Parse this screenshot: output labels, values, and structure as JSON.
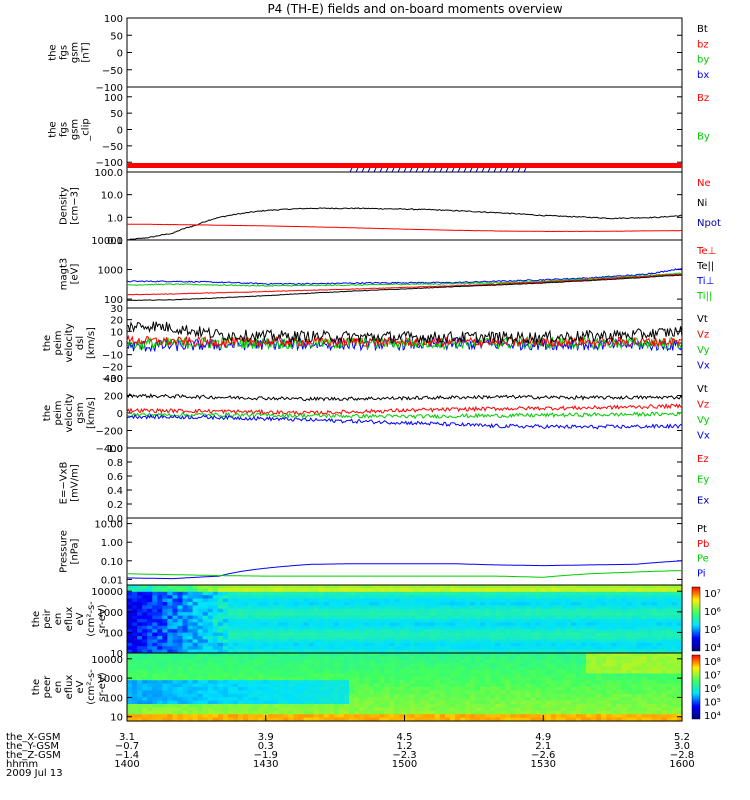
{
  "title": "P4 (TH-E) fields and on-board moments overview",
  "colors": {
    "black": "#000000",
    "red": "#ff0000",
    "green": "#00cc00",
    "blue": "#0000ff",
    "navy": "#0000aa"
  },
  "chart_data": {
    "type": "line",
    "title": "P4 (TH-E) fields and on-board moments overview",
    "date": "2009 Jul 13",
    "x_range": [
      "14:00",
      "16:00"
    ],
    "panels": [
      {
        "id": "fgs",
        "ylabel": [
          "the",
          "fgs",
          "gsm",
          "[nT]"
        ],
        "scale": "linear",
        "ylim": [
          -100,
          100
        ],
        "ticks": [
          100,
          50,
          0,
          -50,
          -100
        ],
        "tick_labels": [
          "100",
          "50",
          "0",
          "−50",
          "−100"
        ],
        "legend": [
          {
            "name": "Bt",
            "color": "#000000"
          },
          {
            "name": "bz",
            "color": "#ff0000"
          },
          {
            "name": "by",
            "color": "#00cc00"
          },
          {
            "name": "bx",
            "color": "#0000ff"
          }
        ],
        "series": []
      },
      {
        "id": "fgs_clip",
        "ylabel": [
          "the",
          "fgs",
          "gsm",
          "_clip"
        ],
        "scale": "linear",
        "ylim": [
          -130,
          130
        ],
        "ticks": [
          100,
          50,
          0,
          -50,
          -100
        ],
        "tick_labels": [
          "100",
          "50",
          "0",
          "−50",
          "−100"
        ],
        "legend": [
          {
            "name": "Bz",
            "color": "#ff0000"
          },
          {
            "name": "By",
            "color": "#00cc00"
          }
        ],
        "series": []
      },
      {
        "id": "density",
        "ylabel": [
          "Density",
          "[cm−3]"
        ],
        "scale": "log",
        "ylim": [
          0.1,
          100
        ],
        "ticks": [
          100,
          10,
          1,
          0.1
        ],
        "tick_labels": [
          "100.0",
          "10.0",
          "1.0",
          "0.1"
        ],
        "legend": [
          {
            "name": "Ne",
            "color": "#ff0000"
          },
          {
            "name": "Ni",
            "color": "#000000"
          },
          {
            "name": "Npot",
            "color": "#0000aa"
          }
        ],
        "series": [
          {
            "name": "Ni",
            "color": "#000000",
            "noise": 0.05,
            "x": [
              0,
              5,
              10,
              15,
              20,
              25,
              30,
              35,
              40,
              45,
              50,
              55,
              60,
              65,
              70,
              75,
              80,
              85,
              90,
              95,
              100,
              105,
              110,
              115,
              120
            ],
            "y": [
              0.1,
              0.13,
              0.2,
              0.45,
              1.0,
              1.5,
              2.0,
              2.3,
              2.5,
              2.5,
              2.5,
              2.4,
              2.3,
              2.2,
              2.0,
              1.8,
              1.6,
              1.4,
              1.2,
              1.1,
              1.0,
              0.9,
              0.95,
              1.0,
              1.2
            ]
          },
          {
            "name": "Ne",
            "color": "#ff0000",
            "noise": 0.01,
            "x": [
              0,
              10,
              20,
              30,
              40,
              50,
              60,
              70,
              80,
              90,
              100,
              110,
              120
            ],
            "y": [
              0.5,
              0.48,
              0.45,
              0.42,
              0.38,
              0.34,
              0.3,
              0.27,
              0.25,
              0.24,
              0.24,
              0.25,
              0.26
            ]
          }
        ]
      },
      {
        "id": "temperature",
        "ylabel": [
          "magt3",
          "[eV]"
        ],
        "scale": "log",
        "ylim": [
          50,
          10000
        ],
        "ticks": [
          10000,
          1000,
          100
        ],
        "tick_labels": [
          "10000",
          "1000",
          "100"
        ],
        "legend": [
          {
            "name": "Te⊥",
            "color": "#ff0000"
          },
          {
            "name": "Te||",
            "color": "#000000"
          },
          {
            "name": "Ti⊥",
            "color": "#0000ff"
          },
          {
            "name": "Ti||",
            "color": "#00cc00"
          }
        ],
        "series": [
          {
            "name": "Ti⊥",
            "color": "#0000ff",
            "noise": 0.05,
            "x": [
              0,
              10,
              20,
              30,
              40,
              50,
              60,
              70,
              80,
              90,
              100,
              110,
              115,
              120
            ],
            "y": [
              400,
              400,
              370,
              330,
              330,
              350,
              360,
              360,
              400,
              450,
              520,
              650,
              800,
              1100
            ]
          },
          {
            "name": "Ti||",
            "color": "#00cc00",
            "noise": 0.04,
            "x": [
              0,
              10,
              20,
              30,
              40,
              50,
              60,
              70,
              80,
              90,
              100,
              110,
              120
            ],
            "y": [
              300,
              320,
              300,
              280,
              290,
              300,
              320,
              330,
              360,
              400,
              480,
              600,
              750
            ]
          },
          {
            "name": "Te⊥",
            "color": "#ff0000",
            "noise": 0.02,
            "x": [
              0,
              10,
              20,
              30,
              40,
              50,
              60,
              70,
              80,
              90,
              100,
              110,
              120
            ],
            "y": [
              140,
              150,
              165,
              180,
              200,
              220,
              250,
              280,
              320,
              380,
              450,
              560,
              700
            ]
          },
          {
            "name": "Te||",
            "color": "#000000",
            "noise": 0.02,
            "x": [
              0,
              10,
              20,
              30,
              40,
              50,
              60,
              70,
              80,
              90,
              100,
              110,
              120
            ],
            "y": [
              90,
              95,
              110,
              130,
              160,
              190,
              220,
              260,
              300,
              350,
              420,
              520,
              650
            ]
          }
        ]
      },
      {
        "id": "velocity_dsl",
        "ylabel": [
          "the",
          "peim",
          "velocity",
          "dsl",
          "[km/s]"
        ],
        "scale": "linear",
        "ylim": [
          -30,
          30
        ],
        "ticks": [
          30,
          20,
          10,
          0,
          -10,
          -20,
          -30
        ],
        "tick_labels": [
          "30",
          "20",
          "10",
          "0",
          "−10",
          "−20",
          "−30"
        ],
        "legend": [
          {
            "name": "Vt",
            "color": "#000000"
          },
          {
            "name": "Vz",
            "color": "#ff0000"
          },
          {
            "name": "Vy",
            "color": "#00cc00"
          },
          {
            "name": "Vx",
            "color": "#0000ff"
          }
        ],
        "series": [
          {
            "name": "Vx",
            "color": "#0000ff",
            "noise": 5,
            "x": [
              0,
              15,
              30,
              60,
              90,
              120
            ],
            "y": [
              -3,
              -2,
              -1,
              -1,
              -1,
              -2
            ]
          },
          {
            "name": "Vy",
            "color": "#00cc00",
            "noise": 5,
            "x": [
              0,
              15,
              30,
              60,
              90,
              120
            ],
            "y": [
              -1,
              0,
              0,
              0,
              0,
              0
            ]
          },
          {
            "name": "Vz",
            "color": "#ff0000",
            "noise": 4,
            "x": [
              0,
              15,
              30,
              60,
              90,
              120
            ],
            "y": [
              2,
              1,
              1,
              1,
              1,
              1
            ]
          },
          {
            "name": "Vt",
            "color": "#000000",
            "noise": 5,
            "x": [
              0,
              5,
              10,
              15,
              20,
              30,
              60,
              90,
              110,
              120
            ],
            "y": [
              14,
              15,
              13,
              10,
              7,
              6,
              5,
              5,
              7,
              10
            ]
          }
        ]
      },
      {
        "id": "velocity_gsm",
        "ylabel": [
          "the",
          "peim",
          "velocity",
          "gsm",
          "[km/s]"
        ],
        "scale": "linear",
        "ylim": [
          -400,
          400
        ],
        "ticks": [
          400,
          200,
          0,
          -200,
          -400
        ],
        "tick_labels": [
          "400",
          "200",
          "0",
          "−200",
          "−400"
        ],
        "legend": [
          {
            "name": "Vt",
            "color": "#000000"
          },
          {
            "name": "Vz",
            "color": "#ff0000"
          },
          {
            "name": "Vy",
            "color": "#00cc00"
          },
          {
            "name": "Vx",
            "color": "#0000ff"
          }
        ],
        "series": [
          {
            "name": "Vt",
            "color": "#000000",
            "noise": 20,
            "x": [
              0,
              20,
              40,
              60,
              80,
              100,
              120
            ],
            "y": [
              200,
              180,
              160,
              170,
              185,
              175,
              180
            ]
          },
          {
            "name": "Vz",
            "color": "#ff0000",
            "noise": 22,
            "x": [
              0,
              20,
              40,
              60,
              80,
              100,
              120
            ],
            "y": [
              30,
              20,
              0,
              30,
              50,
              60,
              80
            ]
          },
          {
            "name": "Vy",
            "color": "#00cc00",
            "noise": 22,
            "x": [
              0,
              20,
              40,
              60,
              80,
              100,
              120
            ],
            "y": [
              -20,
              -20,
              -30,
              -40,
              -30,
              -20,
              -10
            ]
          },
          {
            "name": "Vx",
            "color": "#0000ff",
            "noise": 22,
            "x": [
              0,
              20,
              40,
              60,
              80,
              100,
              120
            ],
            "y": [
              -40,
              -50,
              -80,
              -110,
              -150,
              -160,
              -150
            ]
          }
        ]
      },
      {
        "id": "efield",
        "ylabel": [
          "E=−VxB",
          "[mV/m]"
        ],
        "scale": "linear",
        "ylim": [
          0,
          1
        ],
        "ticks": [
          1.0,
          0.8,
          0.6,
          0.4,
          0.2,
          0.0
        ],
        "tick_labels": [
          "1.0",
          "0.8",
          "0.6",
          "0.4",
          "0.2",
          "0.0"
        ],
        "legend": [
          {
            "name": "Ez",
            "color": "#ff0000"
          },
          {
            "name": "Ey",
            "color": "#00cc00"
          },
          {
            "name": "Ex",
            "color": "#0000aa"
          }
        ],
        "series": []
      },
      {
        "id": "pressure",
        "ylabel": [
          "Pressure",
          "[nPa]"
        ],
        "scale": "log",
        "ylim": [
          0.005,
          20
        ],
        "ticks": [
          10,
          1,
          0.1,
          0.01
        ],
        "tick_labels": [
          "10.00",
          "1.00",
          "0.10",
          "0.01"
        ],
        "legend": [
          {
            "name": "Pt",
            "color": "#000000"
          },
          {
            "name": "Pb",
            "color": "#ff0000"
          },
          {
            "name": "Pe",
            "color": "#00cc00"
          },
          {
            "name": "Pi",
            "color": "#0000ff"
          }
        ],
        "series": [
          {
            "name": "Pi",
            "color": "#0000ff",
            "noise": 0,
            "x": [
              0,
              10,
              20,
              30,
              40,
              50,
              60,
              70,
              80,
              90,
              100,
              110,
              120
            ],
            "y": [
              0.012,
              0.011,
              0.015,
              0.04,
              0.065,
              0.07,
              0.07,
              0.07,
              0.06,
              0.055,
              0.06,
              0.065,
              0.1
            ]
          },
          {
            "name": "Pe",
            "color": "#00cc00",
            "noise": 0,
            "x": [
              0,
              10,
              20,
              30,
              40,
              50,
              60,
              70,
              80,
              90,
              100,
              110,
              120
            ],
            "y": [
              0.02,
              0.018,
              0.016,
              0.015,
              0.015,
              0.015,
              0.015,
              0.015,
              0.015,
              0.013,
              0.02,
              0.025,
              0.03
            ]
          }
        ]
      },
      {
        "id": "ion_spec",
        "type": "heatmap",
        "ylabel": [
          "the",
          "peir",
          "en",
          "eflux",
          "eV",
          "(cm²-s-",
          "sr-eV)"
        ],
        "scale": "log",
        "ylim": [
          10,
          20000
        ],
        "ticks": [
          10000,
          1000,
          100,
          10
        ],
        "tick_labels": [
          "10000",
          "1000",
          "100",
          "10"
        ],
        "colorbar": {
          "ticks": [
            "10⁷",
            "10⁶",
            "10⁵",
            "10⁴"
          ]
        }
      },
      {
        "id": "electron_spec",
        "type": "heatmap",
        "ylabel": [
          "the",
          "peer",
          "en",
          "eflux",
          "eV",
          "(cm²-s-",
          "sr-eV)"
        ],
        "scale": "log",
        "ylim": [
          6,
          20000
        ],
        "ticks": [
          10000,
          1000,
          100,
          10
        ],
        "tick_labels": [
          "10000",
          "1000",
          "100",
          "10"
        ],
        "colorbar": {
          "ticks": [
            "10⁸",
            "10⁷",
            "10⁶",
            "10⁵",
            "10⁴"
          ]
        }
      }
    ],
    "xaxis": {
      "rows": [
        {
          "label": "the_X-GSM",
          "values": [
            "3.1",
            "3.9",
            "4.5",
            "4.9",
            "5.2"
          ]
        },
        {
          "label": "the_Y-GSM",
          "values": [
            "−0.7",
            "0.3",
            "1.2",
            "2.1",
            "3.0"
          ]
        },
        {
          "label": "the_Z-GSM",
          "values": [
            "−1.4",
            "−1.9",
            "−2.3",
            "−2.6",
            "−2.8"
          ]
        },
        {
          "label": "hhmm",
          "values": [
            "1400",
            "1430",
            "1500",
            "1530",
            "1600"
          ]
        }
      ]
    }
  }
}
